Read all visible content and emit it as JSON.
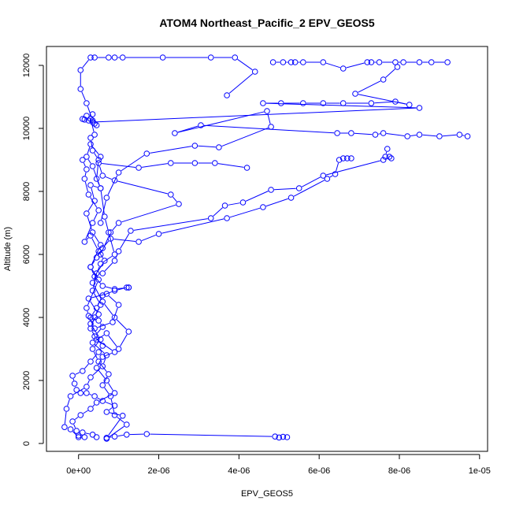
{
  "chart_data": {
    "type": "line",
    "title": "ATOM4 Northeast_Pacific_2 EPV_GEOS5",
    "xlabel": "EPV_GEOS5",
    "ylabel": "Altitude (m)",
    "xlim": [
      -8e-07,
      1.02e-05
    ],
    "ylim": [
      -250,
      12600
    ],
    "x_ticks": [
      0,
      2e-06,
      4e-06,
      6e-06,
      8e-06,
      1e-05
    ],
    "x_tick_labels": [
      "0e+00",
      "2e-06",
      "4e-06",
      "6e-06",
      "8e-06",
      "1e-05"
    ],
    "y_ticks": [
      0,
      2000,
      4000,
      6000,
      8000,
      10000,
      12000
    ],
    "y_tick_labels": [
      "0",
      "2000",
      "4000",
      "6000",
      "8000",
      "10000",
      "12000"
    ],
    "marker": "open-circle",
    "grid": false,
    "legend": "none",
    "colors": {
      "series": "#0000ff",
      "axes": "#000000",
      "background": "#ffffff"
    },
    "series": [
      {
        "points": [
          [
            5.2e-06,
            200
          ],
          [
            5.1e-06,
            210
          ],
          [
            5e-06,
            190
          ],
          [
            4.9e-06,
            220
          ],
          [
            1.7e-06,
            300
          ],
          [
            1.2e-06,
            280
          ],
          [
            9e-07,
            220
          ],
          [
            7e-07,
            180
          ],
          [
            1.1e-06,
            880
          ],
          [
            7e-07,
            1000
          ],
          [
            9e-07,
            1200
          ],
          [
            6e-07,
            1350
          ],
          [
            4e-07,
            1500
          ],
          [
            2e-07,
            1600
          ],
          [
            5e-08,
            1600
          ],
          [
            -5e-08,
            1700
          ],
          [
            -1e-07,
            1900
          ],
          [
            -1.5e-07,
            2150
          ],
          [
            1e-07,
            2300
          ],
          [
            3e-07,
            2600
          ],
          [
            5e-07,
            2900
          ],
          [
            6e-07,
            3100
          ],
          [
            4e-07,
            3400
          ],
          [
            6e-07,
            3700
          ],
          [
            5e-07,
            3900
          ],
          [
            3e-07,
            4000
          ],
          [
            4.5e-07,
            4300
          ],
          [
            6e-07,
            4700
          ],
          [
            9e-07,
            4850
          ],
          [
            1.2e-06,
            4950
          ],
          [
            1.25e-06,
            4950
          ]
        ]
      },
      {
        "points": [
          [
            1.25e-06,
            4950
          ],
          [
            9e-07,
            4900
          ],
          [
            6e-07,
            5000
          ],
          [
            4e-07,
            5300
          ],
          [
            3e-07,
            5600
          ],
          [
            4.5e-07,
            5900
          ],
          [
            6e-07,
            6200
          ],
          [
            8e-07,
            6500
          ],
          [
            1.5e-06,
            6400
          ],
          [
            2e-06,
            6650
          ],
          [
            3.7e-06,
            7150
          ],
          [
            4.6e-06,
            7500
          ],
          [
            5.3e-06,
            7800
          ],
          [
            6.2e-06,
            8400
          ],
          [
            6.4e-06,
            8550
          ],
          [
            6.5e-06,
            9000
          ],
          [
            6.6e-06,
            9050
          ],
          [
            6.7e-06,
            9050
          ],
          [
            6.8e-06,
            9050
          ]
        ]
      },
      {
        "points": [
          [
            6e-07,
            5400
          ],
          [
            9e-07,
            5800
          ],
          [
            1e-06,
            6100
          ],
          [
            1.3e-06,
            6750
          ],
          [
            3.3e-06,
            7150
          ],
          [
            3.65e-06,
            7550
          ],
          [
            4.1e-06,
            7650
          ],
          [
            4.8e-06,
            8050
          ],
          [
            5.5e-06,
            8100
          ],
          [
            6.1e-06,
            8500
          ],
          [
            7.6e-06,
            9000
          ],
          [
            7.75e-06,
            9100
          ],
          [
            7.8e-06,
            9050
          ],
          [
            7.65e-06,
            9100
          ],
          [
            7.7e-06,
            9350
          ]
        ]
      },
      {
        "points": [
          [
            5.5e-07,
            6000
          ],
          [
            8e-07,
            6700
          ],
          [
            1e-06,
            7000
          ],
          [
            2.5e-06,
            7600
          ],
          [
            2.3e-06,
            7900
          ],
          [
            9e-07,
            8350
          ],
          [
            6e-07,
            8500
          ],
          [
            5e-07,
            8900
          ],
          [
            1.5e-06,
            8750
          ],
          [
            2.3e-06,
            8900
          ],
          [
            2.9e-06,
            8900
          ],
          [
            3.4e-06,
            8900
          ],
          [
            4.2e-06,
            8750
          ]
        ]
      },
      {
        "points": [
          [
            5.5e-07,
            7000
          ],
          [
            7e-07,
            7800
          ],
          [
            1e-06,
            8600
          ],
          [
            1.7e-06,
            9200
          ],
          [
            2.9e-06,
            9450
          ],
          [
            3.5e-06,
            9400
          ],
          [
            4.8e-06,
            10050
          ],
          [
            4.7e-06,
            10550
          ],
          [
            2.4e-06,
            9850
          ],
          [
            3.05e-06,
            10100
          ],
          [
            6.45e-06,
            9850
          ],
          [
            6.8e-06,
            9850
          ],
          [
            7.4e-06,
            9800
          ],
          [
            7.6e-06,
            9850
          ],
          [
            8.2e-06,
            9750
          ],
          [
            8.5e-06,
            9800
          ],
          [
            9e-06,
            9750
          ],
          [
            9.5e-06,
            9800
          ],
          [
            9.7e-06,
            9750
          ]
        ]
      },
      {
        "points": [
          [
            4e-07,
            9800
          ],
          [
            3e-07,
            10300
          ],
          [
            3.5e-07,
            10450
          ],
          [
            2e-07,
            10400
          ],
          [
            1e-07,
            10300
          ],
          [
            1.5e-07,
            10280
          ],
          [
            2.5e-07,
            10250
          ],
          [
            4e-07,
            10150
          ],
          [
            4.5e-07,
            10100
          ]
        ]
      },
      {
        "points": [
          [
            3.5e-07,
            10200
          ],
          [
            8.5e-06,
            10650
          ],
          [
            4.6e-06,
            10800
          ],
          [
            5.05e-06,
            10800
          ],
          [
            5.6e-06,
            10800
          ],
          [
            6.1e-06,
            10800
          ],
          [
            6.6e-06,
            10800
          ],
          [
            7.3e-06,
            10800
          ],
          [
            7.9e-06,
            10850
          ],
          [
            8.25e-06,
            10750
          ],
          [
            6.9e-06,
            11100
          ],
          [
            7.6e-06,
            11550
          ],
          [
            7.95e-06,
            11950
          ]
        ]
      },
      {
        "points": [
          [
            3.7e-06,
            11050
          ],
          [
            4.4e-06,
            11800
          ],
          [
            3.9e-06,
            12250
          ],
          [
            3.3e-06,
            12250
          ],
          [
            2.1e-06,
            12250
          ],
          [
            1.1e-06,
            12250
          ],
          [
            9e-07,
            12250
          ],
          [
            7.5e-07,
            12250
          ],
          [
            4e-07,
            12250
          ],
          [
            3e-07,
            12250
          ],
          [
            5e-08,
            11850
          ],
          [
            5e-08,
            11250
          ],
          [
            2e-07,
            10800
          ],
          [
            3.5e-07,
            10250
          ]
        ]
      },
      {
        "points": [
          [
            4.85e-06,
            12100
          ],
          [
            5.1e-06,
            12100
          ],
          [
            5.3e-06,
            12100
          ],
          [
            5.4e-06,
            12100
          ],
          [
            5.6e-06,
            12100
          ],
          [
            6.1e-06,
            12100
          ],
          [
            6.6e-06,
            11900
          ],
          [
            7.2e-06,
            12100
          ],
          [
            7.3e-06,
            12100
          ],
          [
            7.5e-06,
            12100
          ],
          [
            7.9e-06,
            12100
          ],
          [
            8.1e-06,
            12100
          ],
          [
            8.5e-06,
            12100
          ],
          [
            8.8e-06,
            12100
          ],
          [
            9.2e-06,
            12100
          ]
        ]
      },
      {
        "points": [
          [
            4.5e-07,
            200
          ],
          [
            3.5e-07,
            280
          ],
          [
            1e-07,
            350
          ],
          [
            0.0,
            200
          ],
          [
            -2e-07,
            450
          ],
          [
            -3.5e-07,
            520
          ],
          [
            -3e-07,
            1100
          ],
          [
            -2e-07,
            1500
          ],
          [
            2e-07,
            1800
          ],
          [
            3e-07,
            2100
          ],
          [
            6e-07,
            2450
          ],
          [
            7e-07,
            2800
          ],
          [
            3.5e-07,
            3200
          ],
          [
            7e-07,
            3500
          ],
          [
            1e-06,
            3000
          ],
          [
            1.25e-06,
            3550
          ],
          [
            9e-07,
            4000
          ],
          [
            6e-07,
            4500
          ],
          [
            3.5e-07,
            5100
          ],
          [
            5.5e-07,
            5700
          ],
          [
            9e-07,
            6000
          ],
          [
            7.5e-07,
            6700
          ],
          [
            6.5e-07,
            7200
          ],
          [
            5.5e-07,
            8100
          ],
          [
            4.5e-07,
            8400
          ],
          [
            5e-07,
            9000
          ],
          [
            3.5e-07,
            9300
          ],
          [
            3e-07,
            9700
          ]
        ]
      },
      {
        "points": [
          [
            7e-07,
            150
          ],
          [
            1.2e-06,
            600
          ],
          [
            9e-07,
            900
          ],
          [
            8e-07,
            1500
          ],
          [
            6e-07,
            1850
          ],
          [
            7.5e-07,
            2200
          ],
          [
            5e-07,
            2600
          ],
          [
            3.5e-07,
            3000
          ],
          [
            5.5e-07,
            3300
          ],
          [
            3e-07,
            3800
          ],
          [
            5e-07,
            4100
          ],
          [
            2.5e-07,
            4600
          ],
          [
            7e-07,
            4750
          ],
          [
            1e-06,
            4400
          ],
          [
            8.5e-07,
            3850
          ],
          [
            4e-07,
            3650
          ],
          [
            2.5e-07,
            4050
          ],
          [
            2e-07,
            4300
          ],
          [
            5e-07,
            5200
          ],
          [
            3e-07,
            5600
          ],
          [
            5.5e-07,
            6300
          ],
          [
            3.5e-07,
            6700
          ],
          [
            2e-07,
            7300
          ],
          [
            4e-07,
            7700
          ],
          [
            3e-07,
            8200
          ],
          [
            5.5e-07,
            8100
          ],
          [
            3.5e-07,
            8800
          ],
          [
            2e-07,
            9100
          ],
          [
            3e-07,
            9500
          ],
          [
            5.5e-07,
            9100
          ]
        ]
      },
      {
        "points": [
          [
            1.5e-07,
            200
          ],
          [
            0.0,
            250
          ],
          [
            -5e-08,
            400
          ],
          [
            -1.5e-07,
            700
          ],
          [
            5e-08,
            900
          ],
          [
            3e-07,
            1100
          ],
          [
            4.5e-07,
            1300
          ],
          [
            9e-07,
            1600
          ],
          [
            7e-07,
            2000
          ],
          [
            4.5e-07,
            2400
          ],
          [
            6e-07,
            2750
          ],
          [
            9e-07,
            2900
          ],
          [
            4.5e-07,
            3300
          ],
          [
            3e-07,
            3650
          ],
          [
            4e-07,
            4000
          ],
          [
            5.5e-07,
            4400
          ],
          [
            3.5e-07,
            4850
          ],
          [
            4.5e-07,
            5400
          ],
          [
            6.5e-07,
            5800
          ],
          [
            5e-07,
            6100
          ],
          [
            3e-07,
            6600
          ],
          [
            1.5e-07,
            6400
          ],
          [
            3.5e-07,
            7000
          ],
          [
            5e-07,
            7400
          ],
          [
            2.5e-07,
            7900
          ],
          [
            1.5e-07,
            8400
          ],
          [
            2e-07,
            8700
          ],
          [
            1e-07,
            9000
          ]
        ]
      }
    ]
  }
}
